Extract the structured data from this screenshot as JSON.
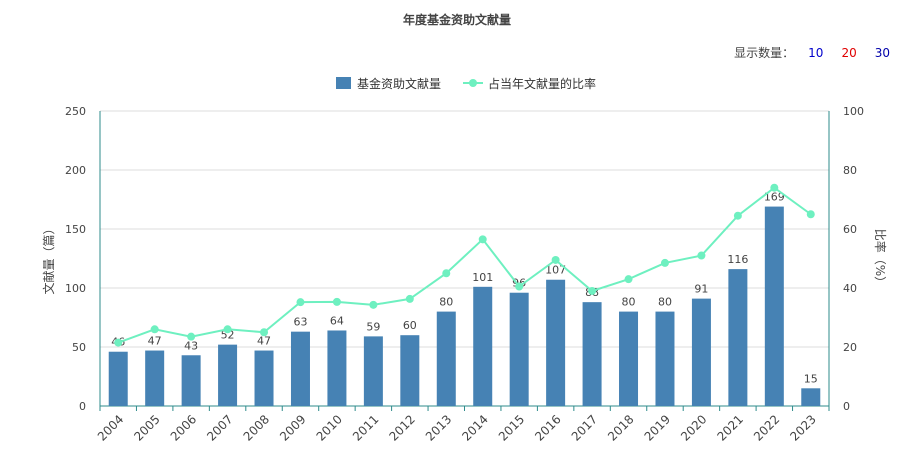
{
  "title": "年度基金资助文献量",
  "controls": {
    "label": "显示数量：",
    "options": [
      {
        "label": "10",
        "color": "#0000cc"
      },
      {
        "label": "20",
        "color": "#e00000"
      },
      {
        "label": "30",
        "color": "#0000aa"
      }
    ]
  },
  "chart_data": {
    "type": "bar",
    "title": "年度基金资助文献量",
    "categories": [
      "2004",
      "2005",
      "2006",
      "2007",
      "2008",
      "2009",
      "2010",
      "2011",
      "2012",
      "2013",
      "2014",
      "2015",
      "2016",
      "2017",
      "2018",
      "2019",
      "2020",
      "2021",
      "2022",
      "2023"
    ],
    "series": [
      {
        "name": "基金资助文献量",
        "type": "bar",
        "axis": "left",
        "color": "#4682b4",
        "values": [
          46,
          47,
          43,
          52,
          47,
          63,
          64,
          59,
          60,
          80,
          101,
          96,
          107,
          88,
          80,
          80,
          91,
          116,
          169,
          15
        ]
      },
      {
        "name": "占当年文献量的比率",
        "type": "line",
        "axis": "right",
        "color": "#6ef0c0",
        "values": [
          21.5,
          26,
          23.5,
          26,
          25,
          35.2,
          35.3,
          34.3,
          36.3,
          45,
          56.5,
          40.5,
          49.5,
          39,
          43,
          48.5,
          51,
          64.5,
          74,
          65
        ]
      }
    ],
    "ylabel": "文献量（篇）",
    "ylim": [
      0,
      250
    ],
    "yticks": [
      0,
      50,
      100,
      150,
      200,
      250
    ],
    "y2label": "比率（%）",
    "y2lim": [
      0,
      100
    ],
    "y2ticks": [
      0,
      20,
      40,
      60,
      80,
      100
    ],
    "grid": true,
    "legend_position": "top"
  }
}
